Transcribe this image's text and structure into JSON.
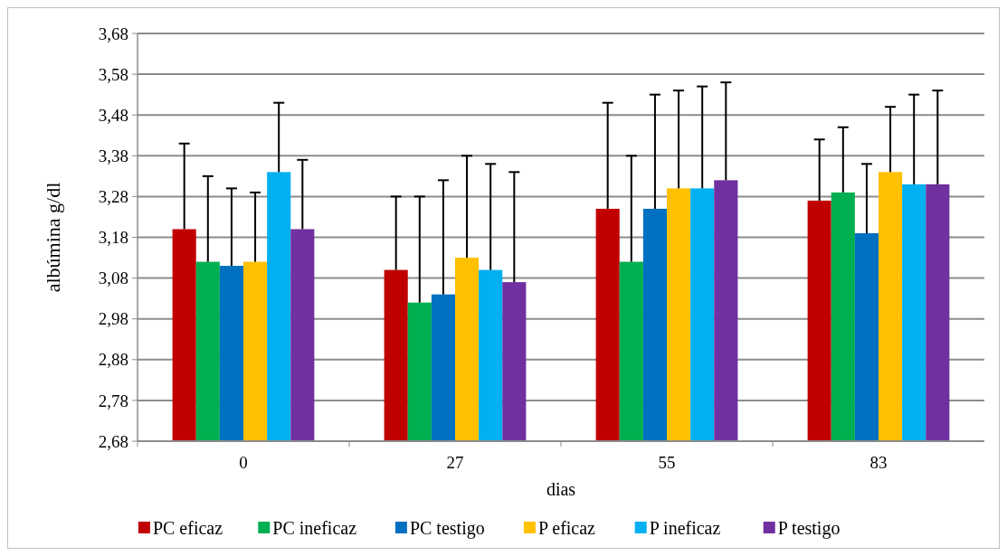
{
  "chart_data": {
    "type": "bar",
    "xlabel": "dias",
    "ylabel": "albúmina g/dl",
    "categories": [
      "0",
      "27",
      "55",
      "83"
    ],
    "ylim": [
      2.68,
      3.68
    ],
    "yticks": [
      {
        "value": 2.68,
        "label": "2,68"
      },
      {
        "value": 2.78,
        "label": "2,78"
      },
      {
        "value": 2.88,
        "label": "2,88"
      },
      {
        "value": 2.98,
        "label": "2,98"
      },
      {
        "value": 3.08,
        "label": "3,08"
      },
      {
        "value": 3.18,
        "label": "3,18"
      },
      {
        "value": 3.28,
        "label": "3,28"
      },
      {
        "value": 3.38,
        "label": "3,38"
      },
      {
        "value": 3.48,
        "label": "3,48"
      },
      {
        "value": 3.58,
        "label": "3,58"
      },
      {
        "value": 3.68,
        "label": "3,68"
      }
    ],
    "grid": "y",
    "legend": "bottom",
    "series": [
      {
        "name": "PC eficaz",
        "color": "#c00000",
        "values": [
          3.2,
          3.1,
          3.25,
          3.27
        ],
        "errors": [
          [
            3.2,
            3.41
          ],
          [
            3.1,
            3.28
          ],
          [
            3.25,
            3.51
          ],
          [
            3.27,
            3.42
          ]
        ]
      },
      {
        "name": "PC ineficaz",
        "color": "#00b050",
        "values": [
          3.12,
          3.02,
          3.12,
          3.29
        ],
        "errors": [
          [
            3.12,
            3.33
          ],
          [
            3.02,
            3.28
          ],
          [
            3.12,
            3.38
          ],
          [
            3.29,
            3.45
          ]
        ]
      },
      {
        "name": "PC testigo",
        "color": "#0070c0",
        "values": [
          3.11,
          3.04,
          3.25,
          3.19
        ],
        "errors": [
          [
            3.11,
            3.3
          ],
          [
            3.04,
            3.32
          ],
          [
            3.25,
            3.53
          ],
          [
            3.19,
            3.36
          ]
        ]
      },
      {
        "name": "P eficaz",
        "color": "#ffc000",
        "values": [
          3.12,
          3.13,
          3.3,
          3.34
        ],
        "errors": [
          [
            3.12,
            3.29
          ],
          [
            3.13,
            3.38
          ],
          [
            3.3,
            3.54
          ],
          [
            3.34,
            3.5
          ]
        ]
      },
      {
        "name": "P ineficaz",
        "color": "#00b0f0",
        "values": [
          3.34,
          3.1,
          3.3,
          3.31
        ],
        "errors": [
          [
            3.34,
            3.51
          ],
          [
            3.1,
            3.36
          ],
          [
            3.3,
            3.55
          ],
          [
            3.31,
            3.53
          ]
        ]
      },
      {
        "name": "P testigo",
        "color": "#7030a0",
        "values": [
          3.2,
          3.07,
          3.32,
          3.31
        ],
        "errors": [
          [
            3.2,
            3.37
          ],
          [
            3.07,
            3.34
          ],
          [
            3.32,
            3.56
          ],
          [
            3.31,
            3.54
          ]
        ]
      }
    ]
  }
}
